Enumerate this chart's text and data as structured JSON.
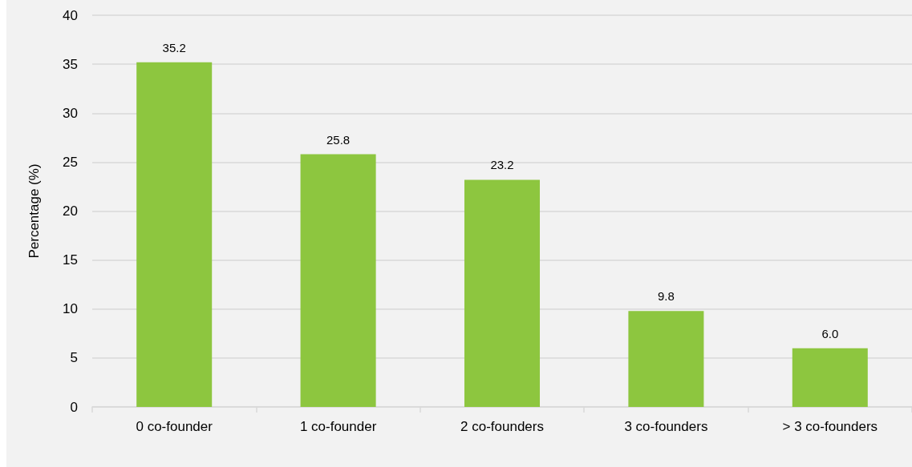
{
  "chart_data": {
    "type": "bar",
    "ylabel": "Percentage (%)",
    "categories": [
      "0 co-founder",
      "1 co-founder",
      "2 co-founders",
      "3 co-founders",
      "> 3 co-founders"
    ],
    "values": [
      35.2,
      25.8,
      23.2,
      9.8,
      6.0
    ],
    "value_labels": [
      "35.2",
      "25.8",
      "23.2",
      "9.8",
      "6.0"
    ],
    "color": "#8dc63f",
    "ylim": [
      0,
      40
    ],
    "yticks": [
      0,
      5,
      10,
      15,
      20,
      25,
      30,
      35,
      40
    ],
    "grid": "y"
  }
}
